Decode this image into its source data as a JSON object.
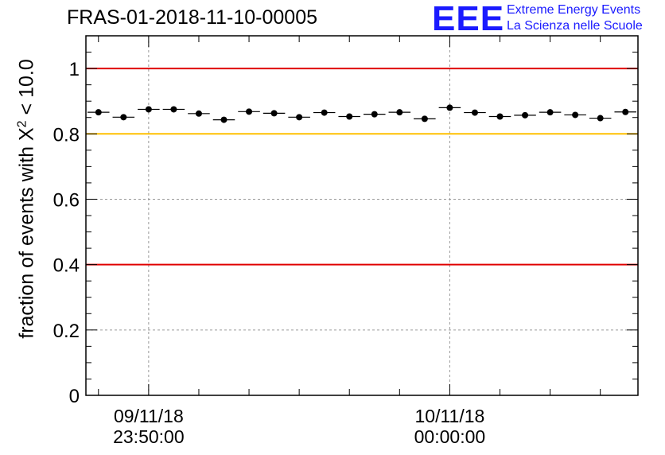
{
  "chart_data": {
    "type": "scatter",
    "title": "FRAS-01-2018-11-10-00005",
    "ylabel_prefix": "fraction of events with ",
    "ylabel_chi": "X",
    "ylabel_exp": "2",
    "ylabel_suffix": " < 10.0",
    "ylim": [
      0,
      1.1
    ],
    "y_ticks": [
      0,
      0.2,
      0.4,
      0.6,
      0.8,
      1
    ],
    "y_tick_labels": [
      "0",
      "0.2",
      "0.4",
      "0.6",
      "0.8",
      "1"
    ],
    "x_labels": [
      {
        "date": "09/11/18",
        "time": "23:50:00",
        "at_index": 2.5
      },
      {
        "date": "10/11/18",
        "time": "00:00:00",
        "at_index": 14.5
      }
    ],
    "reference_lines": [
      {
        "y": 1.0,
        "color": "#e00000"
      },
      {
        "y": 0.8,
        "color": "#ffc000"
      },
      {
        "y": 0.4,
        "color": "#e00000"
      }
    ],
    "grid": true,
    "series": [
      {
        "name": "fraction",
        "values": [
          0.866,
          0.851,
          0.875,
          0.875,
          0.862,
          0.843,
          0.868,
          0.863,
          0.851,
          0.865,
          0.853,
          0.86,
          0.866,
          0.846,
          0.88,
          0.865,
          0.853,
          0.857,
          0.866,
          0.858,
          0.848,
          0.867
        ]
      }
    ]
  },
  "logo": {
    "mark": "EEE",
    "line1": "Extreme Energy Events",
    "line2": "La Scienza nelle Scuole",
    "color": "#1a1aff"
  }
}
